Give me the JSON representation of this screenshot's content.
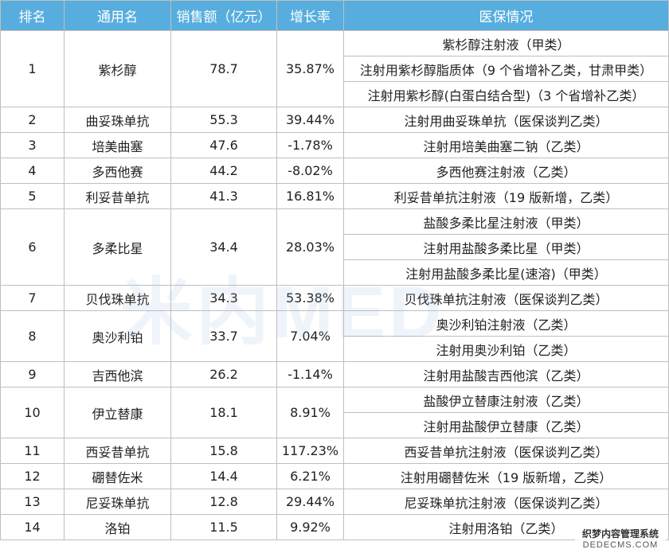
{
  "columns": [
    "排名",
    "通用名",
    "销售额（亿元）",
    "增长率",
    "医保情况"
  ],
  "rows": [
    {
      "rank": "1",
      "name": "紫杉醇",
      "sales": "78.7",
      "growth": "35.87%",
      "insurance": [
        "紫杉醇注射液（甲类）",
        "注射用紫杉醇脂质体（9 个省增补乙类，甘肃甲类）",
        "注射用紫杉醇(白蛋白结合型)（3 个省增补乙类）"
      ]
    },
    {
      "rank": "2",
      "name": "曲妥珠单抗",
      "sales": "55.3",
      "growth": "39.44%",
      "insurance": [
        "注射用曲妥珠单抗（医保谈判乙类）"
      ]
    },
    {
      "rank": "3",
      "name": "培美曲塞",
      "sales": "47.6",
      "growth": "-1.78%",
      "insurance": [
        "注射用培美曲塞二钠（乙类）"
      ]
    },
    {
      "rank": "4",
      "name": "多西他赛",
      "sales": "44.2",
      "growth": "-8.02%",
      "insurance": [
        "多西他赛注射液（乙类）"
      ]
    },
    {
      "rank": "5",
      "name": "利妥昔单抗",
      "sales": "41.3",
      "growth": "16.81%",
      "insurance": [
        "利妥昔单抗注射液（19 版新增，乙类）"
      ]
    },
    {
      "rank": "6",
      "name": "多柔比星",
      "sales": "34.4",
      "growth": "28.03%",
      "insurance": [
        "盐酸多柔比星注射液（甲类）",
        "注射用盐酸多柔比星（甲类）",
        "注射用盐酸多柔比星(速溶)（甲类）"
      ]
    },
    {
      "rank": "7",
      "name": "贝伐珠单抗",
      "sales": "34.3",
      "growth": "53.38%",
      "insurance": [
        "贝伐珠单抗注射液（医保谈判乙类）"
      ]
    },
    {
      "rank": "8",
      "name": "奥沙利铂",
      "sales": "33.7",
      "growth": "7.04%",
      "insurance": [
        "奥沙利铂注射液（乙类）",
        "注射用奥沙利铂（乙类）"
      ]
    },
    {
      "rank": "9",
      "name": "吉西他滨",
      "sales": "26.2",
      "growth": "-1.14%",
      "insurance": [
        "注射用盐酸吉西他滨（乙类）"
      ]
    },
    {
      "rank": "10",
      "name": "伊立替康",
      "sales": "18.1",
      "growth": "8.91%",
      "insurance": [
        "盐酸伊立替康注射液（乙类）",
        "注射用盐酸伊立替康（乙类）"
      ]
    },
    {
      "rank": "11",
      "name": "西妥昔单抗",
      "sales": "15.8",
      "growth": "117.23%",
      "insurance": [
        "西妥昔单抗注射液（医保谈判乙类）"
      ]
    },
    {
      "rank": "12",
      "name": "硼替佐米",
      "sales": "14.4",
      "growth": "6.21%",
      "insurance": [
        "注射用硼替佐米（19 版新增，乙类）"
      ]
    },
    {
      "rank": "13",
      "name": "尼妥珠单抗",
      "sales": "12.8",
      "growth": "29.44%",
      "insurance": [
        "尼妥珠单抗注射液（医保谈判乙类）"
      ]
    },
    {
      "rank": "14",
      "name": "洛铂",
      "sales": "11.5",
      "growth": "9.92%",
      "insurance": [
        "注射用洛铂（乙类）"
      ]
    }
  ],
  "watermark": "米内MED",
  "corner_stamp": {
    "line1": "织梦内容管理系统",
    "line2": "DEDECMS.COM"
  },
  "colors": {
    "header_bg": "#57aede",
    "header_text": "#ffffff",
    "border": "#bfbfbf",
    "text": "#222222"
  }
}
